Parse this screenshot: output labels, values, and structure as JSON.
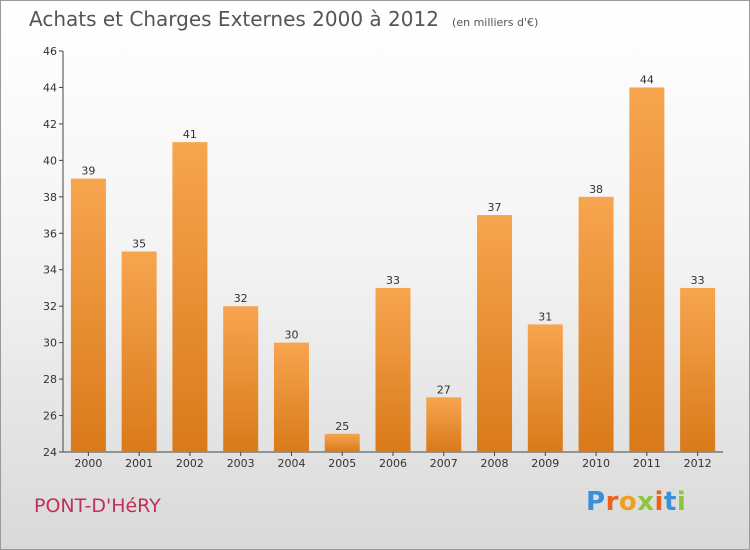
{
  "header": {
    "title": "Achats et Charges Externes 2000 à 2012",
    "unit": "(en milliers d'€)"
  },
  "footer": {
    "commune": "PONT-D'HéRY",
    "logo": [
      "P",
      "r",
      "o",
      "x",
      "i",
      "t",
      "i"
    ]
  },
  "colors": {
    "bar_top": "#f7a54f",
    "bar_bottom": "#d97a1a",
    "commune": "#c0305a",
    "logo": [
      "#3a8fd8",
      "#e8621c",
      "#f0a020",
      "#8cc63f",
      "#e8621c",
      "#3a8fd8",
      "#8cc63f"
    ]
  },
  "chart_data": {
    "type": "bar",
    "title": "Achats et Charges Externes 2000 à 2012",
    "subtitle": "(en milliers d'€)",
    "categories": [
      "2000",
      "2001",
      "2002",
      "2003",
      "2004",
      "2005",
      "2006",
      "2007",
      "2008",
      "2009",
      "2010",
      "2011",
      "2012"
    ],
    "values": [
      39,
      35,
      41,
      32,
      30,
      25,
      33,
      27,
      37,
      31,
      38,
      44,
      33
    ],
    "ylim": [
      24,
      46
    ],
    "yticks": [
      24,
      26,
      28,
      30,
      32,
      34,
      36,
      38,
      40,
      42,
      44,
      46
    ],
    "grid": false,
    "legend": "none"
  }
}
